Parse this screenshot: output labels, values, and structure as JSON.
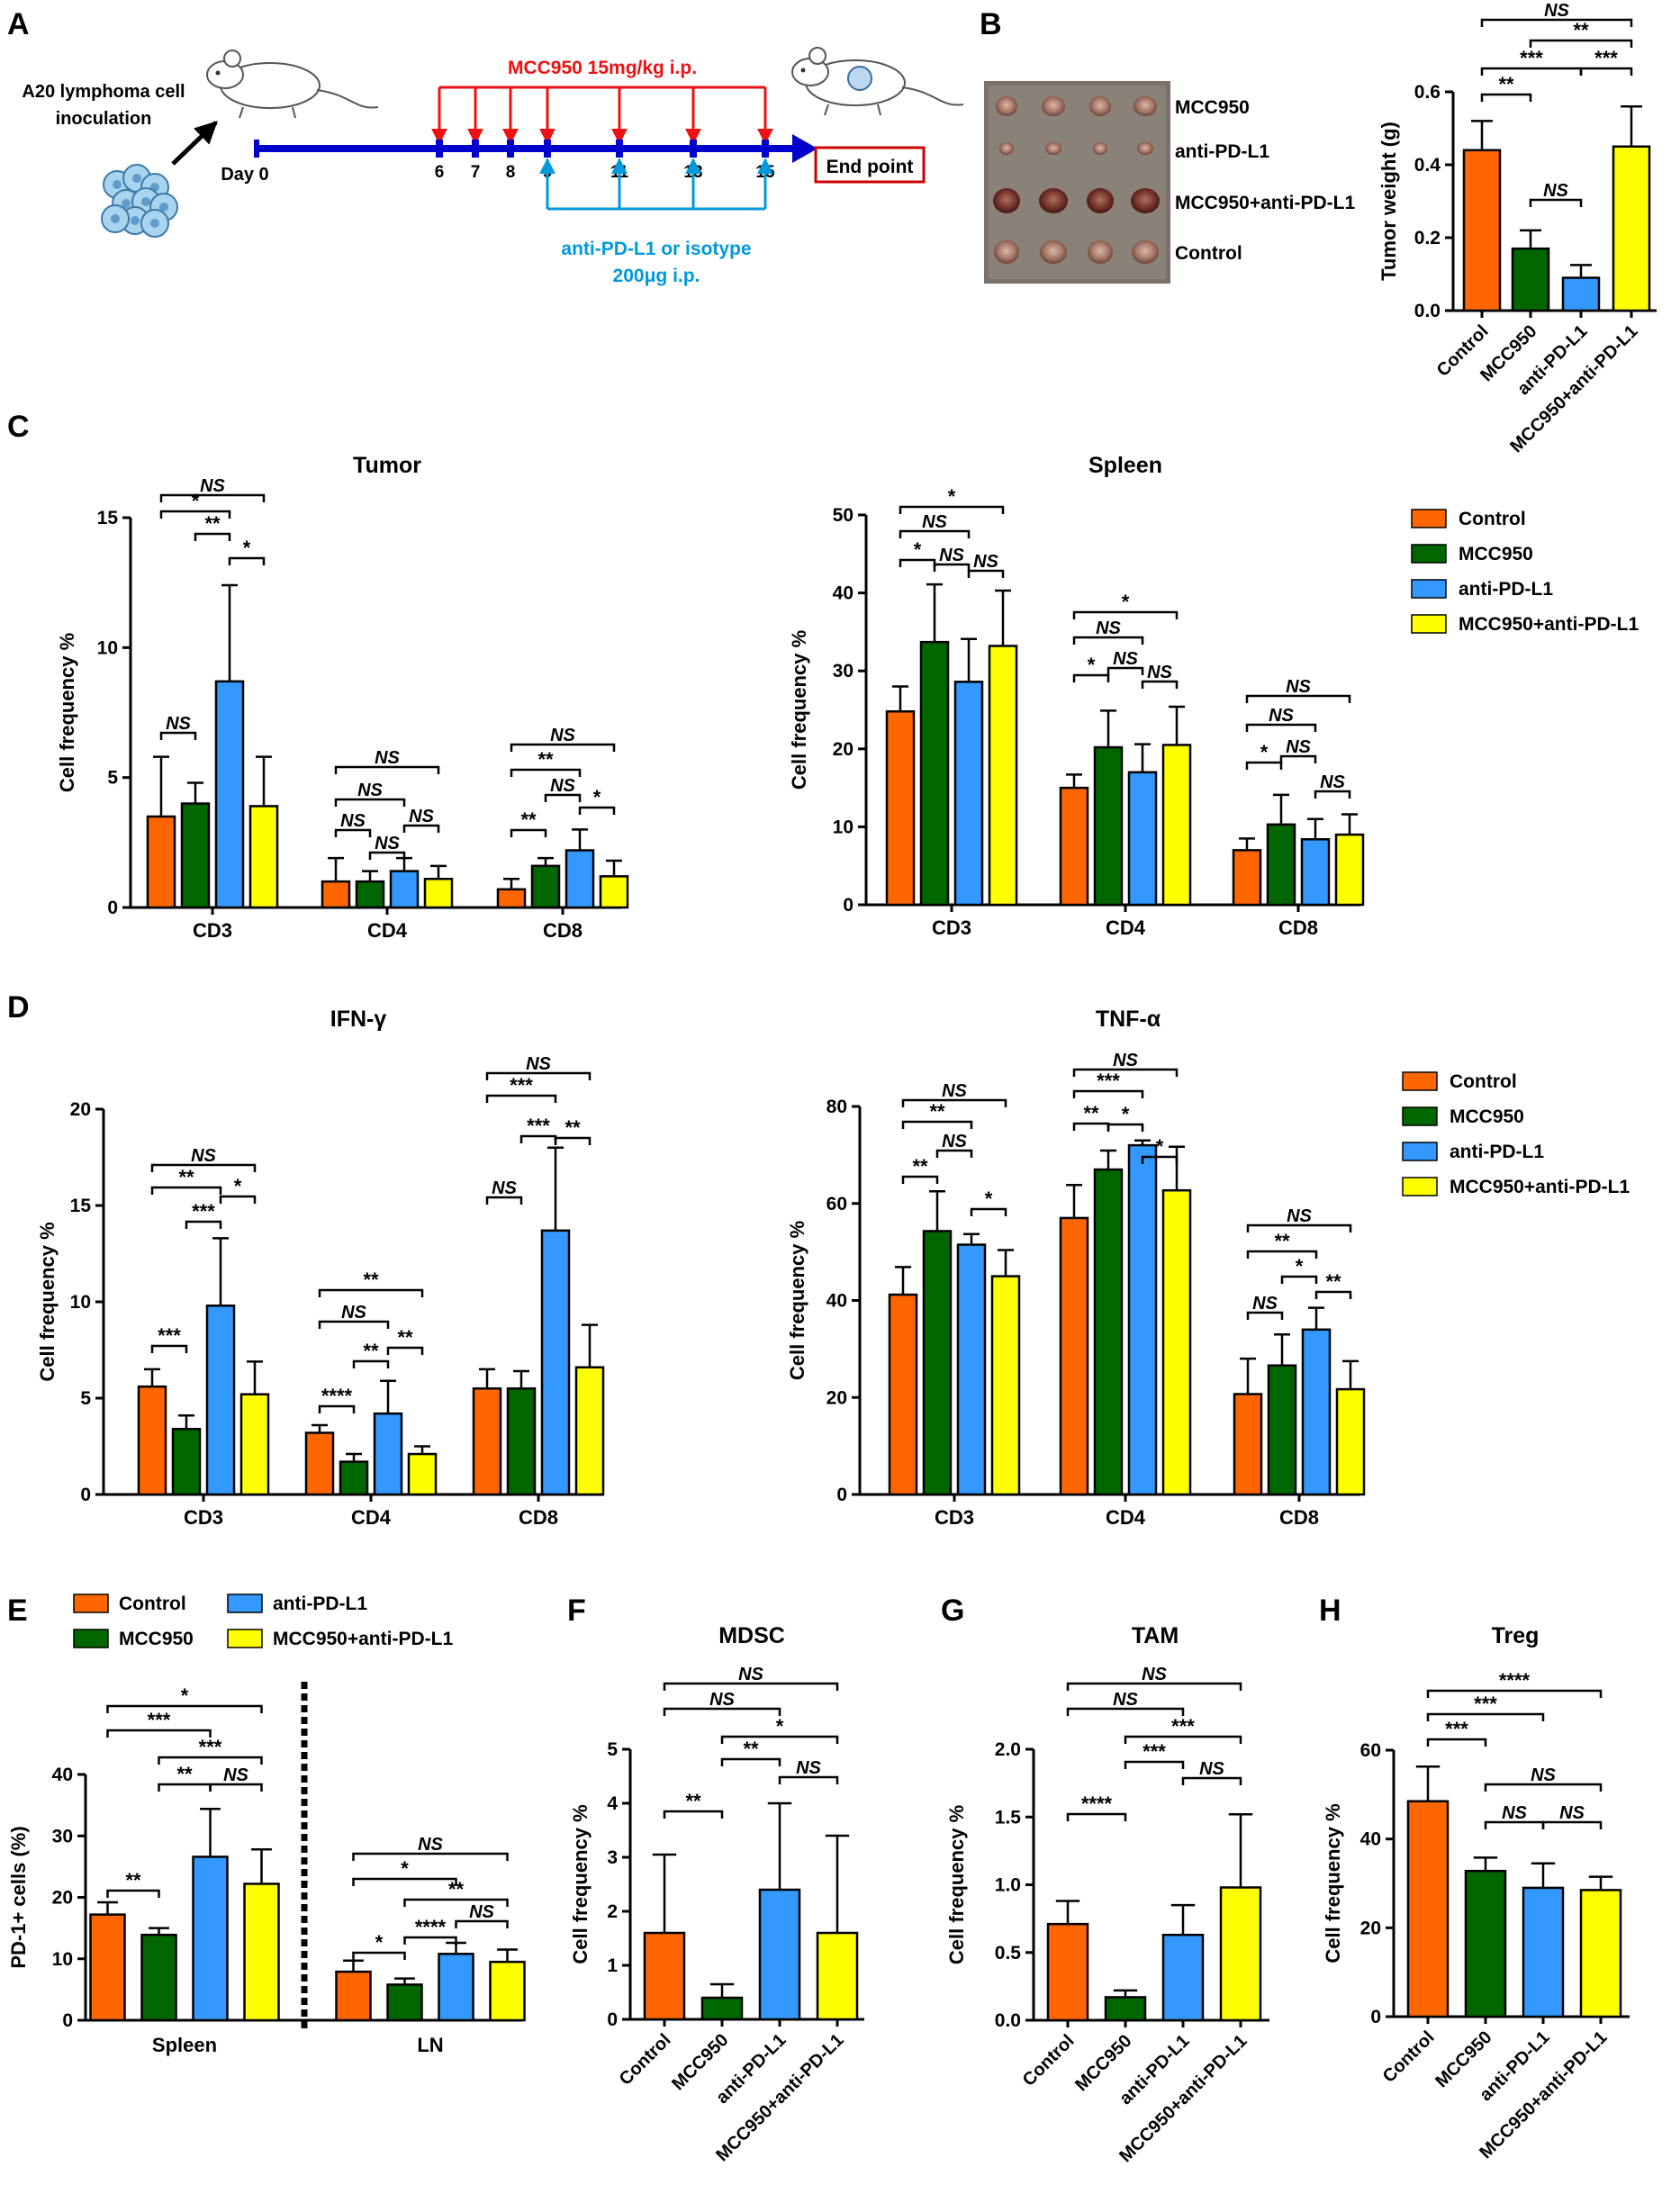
{
  "colors": {
    "Control": "#ff6600",
    "MCC950": "#006600",
    "anti-PD-L1": "#3399ff",
    "MCC950+anti-PD-L1": "#ffff00",
    "timeline_blue": "#0000cc",
    "timeline_red": "#ee1111",
    "arrow_cyan": "#0099dd",
    "endpoint_border": "#cc0000"
  },
  "groups": [
    "Control",
    "MCC950",
    "anti-PD-L1",
    "MCC950+anti-PD-L1"
  ],
  "panel_letters": {
    "A": "A",
    "B": "B",
    "C": "C",
    "D": "D",
    "E": "E",
    "F": "F",
    "G": "G",
    "H": "H"
  },
  "panelA": {
    "inoculation": [
      "A20 lymphoma cell",
      "inoculation"
    ],
    "day0": "Day 0",
    "mcc_label": "MCC950 15mg/kg i.p.",
    "mcc_days": [
      "6",
      "7",
      "8",
      "9",
      "11",
      "13",
      "15"
    ],
    "anti_label": [
      "anti-PD-L1 or isotype",
      "200μg i.p."
    ],
    "anti_days": [
      "9",
      "11",
      "13",
      "15"
    ],
    "endpoint": "End point"
  },
  "panelB": {
    "photo_labels": [
      "MCC950",
      "anti-PD-L1",
      "MCC950+anti-PD-L1",
      "Control"
    ],
    "photo_icon": "excised-tumor-photo"
  },
  "chart_data": [
    {
      "id": "B",
      "type": "bar",
      "ylabel": "Tumor weight (g)",
      "ylim": [
        0,
        0.6
      ],
      "yticks": [
        "0.0",
        "0.2",
        "0.4",
        "0.6"
      ],
      "categories": [
        "Control",
        "MCC950",
        "anti-PD-L1",
        "MCC950+anti-PD-L1"
      ],
      "values": [
        0.44,
        0.17,
        0.09,
        0.45
      ],
      "errors": [
        0.08,
        0.05,
        0.035,
        0.11
      ],
      "annotations": [
        {
          "text": "NS",
          "from": "Control",
          "to": "MCC950+anti-PD-L1"
        },
        {
          "text": "**",
          "from": "MCC950",
          "to": "MCC950+anti-PD-L1"
        },
        {
          "text": "***",
          "from": "Control",
          "to": "anti-PD-L1"
        },
        {
          "text": "***",
          "from": "anti-PD-L1",
          "to": "MCC950+anti-PD-L1"
        },
        {
          "text": "**",
          "from": "Control",
          "to": "MCC950"
        },
        {
          "text": "NS",
          "from": "MCC950",
          "to": "anti-PD-L1"
        }
      ]
    },
    {
      "id": "C-tumor",
      "type": "bar",
      "title": "Tumor",
      "ylabel": "Cell frequency %",
      "ylim": [
        0,
        15
      ],
      "yticks": [
        "0",
        "5",
        "10",
        "15"
      ],
      "categories": [
        "CD3",
        "CD4",
        "CD8"
      ],
      "series": [
        {
          "name": "Control",
          "values": [
            3.5,
            1.0,
            0.7
          ],
          "errors": [
            2.3,
            0.9,
            0.4
          ]
        },
        {
          "name": "MCC950",
          "values": [
            4.0,
            1.0,
            1.6
          ],
          "errors": [
            0.8,
            0.4,
            0.3
          ]
        },
        {
          "name": "anti-PD-L1",
          "values": [
            8.7,
            1.4,
            2.2
          ],
          "errors": [
            3.7,
            0.5,
            0.8
          ]
        },
        {
          "name": "MCC950+anti-PD-L1",
          "values": [
            3.9,
            1.1,
            1.2
          ],
          "errors": [
            1.9,
            0.5,
            0.6
          ]
        }
      ],
      "annotations": [
        {
          "cat": 0,
          "text": "NS",
          "from": 0,
          "to": 3
        },
        {
          "cat": 0,
          "text": "*",
          "from": 0,
          "to": 2
        },
        {
          "cat": 0,
          "text": "**",
          "from": 1,
          "to": 2
        },
        {
          "cat": 0,
          "text": "*",
          "from": 2,
          "to": 3
        },
        {
          "cat": 0,
          "text": "NS",
          "from": 0,
          "to": 1
        },
        {
          "cat": 1,
          "text": "NS",
          "from": 0,
          "to": 3
        },
        {
          "cat": 1,
          "text": "NS",
          "from": 0,
          "to": 2
        },
        {
          "cat": 1,
          "text": "NS",
          "from": 2,
          "to": 3
        },
        {
          "cat": 1,
          "text": "NS",
          "from": 0,
          "to": 1
        },
        {
          "cat": 1,
          "text": "NS",
          "from": 1,
          "to": 2
        },
        {
          "cat": 2,
          "text": "NS",
          "from": 0,
          "to": 3
        },
        {
          "cat": 2,
          "text": "**",
          "from": 0,
          "to": 2
        },
        {
          "cat": 2,
          "text": "NS",
          "from": 1,
          "to": 2
        },
        {
          "cat": 2,
          "text": "*",
          "from": 2,
          "to": 3
        },
        {
          "cat": 2,
          "text": "**",
          "from": 0,
          "to": 1
        }
      ]
    },
    {
      "id": "C-spleen",
      "type": "bar",
      "title": "Spleen",
      "ylabel": "Cell frequency %",
      "ylim": [
        0,
        50
      ],
      "yticks": [
        "0",
        "10",
        "20",
        "30",
        "40",
        "50"
      ],
      "categories": [
        "CD3",
        "CD4",
        "CD8"
      ],
      "series": [
        {
          "name": "Control",
          "values": [
            24.8,
            15.0,
            7.0
          ],
          "errors": [
            3.2,
            1.7,
            1.5
          ]
        },
        {
          "name": "MCC950",
          "values": [
            33.7,
            20.2,
            10.3
          ],
          "errors": [
            7.4,
            4.7,
            3.8
          ]
        },
        {
          "name": "anti-PD-L1",
          "values": [
            28.6,
            17.0,
            8.4
          ],
          "errors": [
            5.5,
            3.6,
            2.6
          ]
        },
        {
          "name": "MCC950+anti-PD-L1",
          "values": [
            33.2,
            20.5,
            9.0
          ],
          "errors": [
            7.1,
            4.9,
            2.6
          ]
        }
      ],
      "annotations": [
        {
          "cat": 0,
          "text": "*",
          "from": 0,
          "to": 3
        },
        {
          "cat": 0,
          "text": "NS",
          "from": 0,
          "to": 2
        },
        {
          "cat": 0,
          "text": "*",
          "from": 0,
          "to": 1
        },
        {
          "cat": 0,
          "text": "NS",
          "from": 1,
          "to": 2
        },
        {
          "cat": 0,
          "text": "NS",
          "from": 2,
          "to": 3
        },
        {
          "cat": 1,
          "text": "*",
          "from": 0,
          "to": 3
        },
        {
          "cat": 1,
          "text": "NS",
          "from": 0,
          "to": 2
        },
        {
          "cat": 1,
          "text": "NS",
          "from": 1,
          "to": 2
        },
        {
          "cat": 1,
          "text": "*",
          "from": 0,
          "to": 1
        },
        {
          "cat": 1,
          "text": "NS",
          "from": 2,
          "to": 3
        },
        {
          "cat": 2,
          "text": "NS",
          "from": 0,
          "to": 3
        },
        {
          "cat": 2,
          "text": "NS",
          "from": 0,
          "to": 2
        },
        {
          "cat": 2,
          "text": "NS",
          "from": 1,
          "to": 2
        },
        {
          "cat": 2,
          "text": "*",
          "from": 0,
          "to": 1
        },
        {
          "cat": 2,
          "text": "NS",
          "from": 2,
          "to": 3
        }
      ]
    },
    {
      "id": "D-ifng",
      "type": "bar",
      "title": "IFN-γ",
      "ylabel": "Cell frequency %",
      "ylim": [
        0,
        20
      ],
      "yticks": [
        "0",
        "5",
        "10",
        "15",
        "20"
      ],
      "categories": [
        "CD3",
        "CD4",
        "CD8"
      ],
      "series": [
        {
          "name": "Control",
          "values": [
            5.6,
            3.2,
            5.5
          ],
          "errors": [
            0.9,
            0.4,
            1.0
          ]
        },
        {
          "name": "MCC950",
          "values": [
            3.4,
            1.7,
            5.5
          ],
          "errors": [
            0.7,
            0.4,
            0.9
          ]
        },
        {
          "name": "anti-PD-L1",
          "values": [
            9.8,
            4.2,
            13.7
          ],
          "errors": [
            3.5,
            1.7,
            4.3
          ]
        },
        {
          "name": "MCC950+anti-PD-L1",
          "values": [
            5.2,
            2.1,
            6.6
          ],
          "errors": [
            1.7,
            0.4,
            2.2
          ]
        }
      ],
      "annotations": [
        {
          "cat": 0,
          "text": "NS",
          "from": 0,
          "to": 3
        },
        {
          "cat": 0,
          "text": "**",
          "from": 0,
          "to": 2
        },
        {
          "cat": 0,
          "text": "***",
          "from": 1,
          "to": 2
        },
        {
          "cat": 0,
          "text": "*",
          "from": 2,
          "to": 3
        },
        {
          "cat": 0,
          "text": "***",
          "from": 0,
          "to": 1
        },
        {
          "cat": 1,
          "text": "**",
          "from": 0,
          "to": 3
        },
        {
          "cat": 1,
          "text": "NS",
          "from": 0,
          "to": 2
        },
        {
          "cat": 1,
          "text": "**",
          "from": 1,
          "to": 2
        },
        {
          "cat": 1,
          "text": "**",
          "from": 2,
          "to": 3
        },
        {
          "cat": 1,
          "text": "****",
          "from": 0,
          "to": 1
        },
        {
          "cat": 2,
          "text": "NS",
          "from": 0,
          "to": 3
        },
        {
          "cat": 2,
          "text": "***",
          "from": 0,
          "to": 2
        },
        {
          "cat": 2,
          "text": "***",
          "from": 1,
          "to": 2
        },
        {
          "cat": 2,
          "text": "**",
          "from": 2,
          "to": 3
        },
        {
          "cat": 2,
          "text": "NS",
          "from": 0,
          "to": 1
        }
      ]
    },
    {
      "id": "D-tnfa",
      "type": "bar",
      "title": "TNF-α",
      "ylabel": "Cell frequency %",
      "ylim": [
        0,
        80
      ],
      "yticks": [
        "0",
        "20",
        "40",
        "60",
        "80"
      ],
      "categories": [
        "CD3",
        "CD4",
        "CD8"
      ],
      "series": [
        {
          "name": "Control",
          "values": [
            41.2,
            57.0,
            20.7
          ],
          "errors": [
            5.7,
            6.8,
            7.3
          ]
        },
        {
          "name": "MCC950",
          "values": [
            54.3,
            67.0,
            26.6
          ],
          "errors": [
            8.2,
            3.9,
            6.4
          ]
        },
        {
          "name": "anti-PD-L1",
          "values": [
            51.5,
            72.0,
            34.0
          ],
          "errors": [
            2.2,
            1.0,
            4.5
          ]
        },
        {
          "name": "MCC950+anti-PD-L1",
          "values": [
            45.0,
            62.7,
            21.7
          ],
          "errors": [
            5.4,
            9.0,
            5.8
          ]
        }
      ],
      "annotations": [
        {
          "cat": 0,
          "text": "NS",
          "from": 0,
          "to": 3
        },
        {
          "cat": 0,
          "text": "**",
          "from": 0,
          "to": 2
        },
        {
          "cat": 0,
          "text": "NS",
          "from": 1,
          "to": 2
        },
        {
          "cat": 0,
          "text": "**",
          "from": 0,
          "to": 1
        },
        {
          "cat": 0,
          "text": "*",
          "from": 2,
          "to": 3
        },
        {
          "cat": 1,
          "text": "NS",
          "from": 0,
          "to": 3
        },
        {
          "cat": 1,
          "text": "***",
          "from": 0,
          "to": 2
        },
        {
          "cat": 1,
          "text": "**",
          "from": 0,
          "to": 1
        },
        {
          "cat": 1,
          "text": "*",
          "from": 1,
          "to": 2
        },
        {
          "cat": 1,
          "text": "*",
          "from": 2,
          "to": 3
        },
        {
          "cat": 2,
          "text": "NS",
          "from": 0,
          "to": 3
        },
        {
          "cat": 2,
          "text": "**",
          "from": 0,
          "to": 2
        },
        {
          "cat": 2,
          "text": "*",
          "from": 1,
          "to": 2
        },
        {
          "cat": 2,
          "text": "NS",
          "from": 0,
          "to": 1
        },
        {
          "cat": 2,
          "text": "**",
          "from": 2,
          "to": 3
        }
      ]
    },
    {
      "id": "E",
      "type": "bar",
      "ylabel": "PD-1+ cells (%)",
      "ylim": [
        0,
        40
      ],
      "yticks": [
        "0",
        "10",
        "20",
        "30",
        "40"
      ],
      "categories": [
        "Spleen",
        "LN"
      ],
      "series": [
        {
          "name": "Control",
          "values": [
            17.2,
            7.9
          ],
          "errors": [
            2.0,
            1.8
          ]
        },
        {
          "name": "MCC950",
          "values": [
            13.9,
            5.8
          ],
          "errors": [
            1.1,
            1.0
          ]
        },
        {
          "name": "anti-PD-L1",
          "values": [
            26.6,
            10.8
          ],
          "errors": [
            7.8,
            1.8
          ]
        },
        {
          "name": "MCC950+anti-PD-L1",
          "values": [
            22.2,
            9.5
          ],
          "errors": [
            5.6,
            2.0
          ]
        }
      ],
      "annotations": [
        {
          "cat": 0,
          "text": "*",
          "from": 0,
          "to": 3
        },
        {
          "cat": 0,
          "text": "***",
          "from": 0,
          "to": 2
        },
        {
          "cat": 0,
          "text": "***",
          "from": 1,
          "to": 3
        },
        {
          "cat": 0,
          "text": "**",
          "from": 1,
          "to": 2
        },
        {
          "cat": 0,
          "text": "NS",
          "from": 2,
          "to": 3
        },
        {
          "cat": 0,
          "text": "**",
          "from": 0,
          "to": 1
        },
        {
          "cat": 1,
          "text": "NS",
          "from": 0,
          "to": 3
        },
        {
          "cat": 1,
          "text": "*",
          "from": 0,
          "to": 2
        },
        {
          "cat": 1,
          "text": "**",
          "from": 1,
          "to": 3
        },
        {
          "cat": 1,
          "text": "NS",
          "from": 2,
          "to": 3
        },
        {
          "cat": 1,
          "text": "****",
          "from": 1,
          "to": 2
        },
        {
          "cat": 1,
          "text": "*",
          "from": 0,
          "to": 1
        }
      ]
    },
    {
      "id": "F",
      "type": "bar",
      "title": "MDSC",
      "ylabel": "Cell frequency %",
      "ylim": [
        0,
        5
      ],
      "yticks": [
        "0",
        "1",
        "2",
        "3",
        "4",
        "5"
      ],
      "categories": [
        "Control",
        "MCC950",
        "anti-PD-L1",
        "MCC950+anti-PD-L1"
      ],
      "values": [
        1.6,
        0.4,
        2.4,
        1.6
      ],
      "errors": [
        1.45,
        0.25,
        1.6,
        1.8
      ],
      "annotations": [
        {
          "text": "NS",
          "from": 0,
          "to": 3
        },
        {
          "text": "NS",
          "from": 0,
          "to": 2
        },
        {
          "text": "*",
          "from": 1,
          "to": 3
        },
        {
          "text": "**",
          "from": 1,
          "to": 2
        },
        {
          "text": "NS",
          "from": 2,
          "to": 3
        },
        {
          "text": "**",
          "from": 0,
          "to": 1
        }
      ]
    },
    {
      "id": "G",
      "type": "bar",
      "title": "TAM",
      "ylabel": "Cell frequency %",
      "ylim": [
        0,
        2.0
      ],
      "yticks": [
        "0.0",
        "0.5",
        "1.0",
        "1.5",
        "2.0"
      ],
      "categories": [
        "Control",
        "MCC950",
        "anti-PD-L1",
        "MCC950+anti-PD-L1"
      ],
      "values": [
        0.71,
        0.17,
        0.63,
        0.98
      ],
      "errors": [
        0.17,
        0.05,
        0.22,
        0.54
      ],
      "annotations": [
        {
          "text": "NS",
          "from": 0,
          "to": 3
        },
        {
          "text": "NS",
          "from": 0,
          "to": 2
        },
        {
          "text": "***",
          "from": 1,
          "to": 3
        },
        {
          "text": "***",
          "from": 1,
          "to": 2
        },
        {
          "text": "NS",
          "from": 2,
          "to": 3
        },
        {
          "text": "****",
          "from": 0,
          "to": 1
        }
      ]
    },
    {
      "id": "H",
      "type": "bar",
      "title": "Treg",
      "ylabel": "Cell frequency %",
      "ylim": [
        0,
        60
      ],
      "yticks": [
        "0",
        "20",
        "40",
        "60"
      ],
      "categories": [
        "Control",
        "MCC950",
        "anti-PD-L1",
        "MCC950+anti-PD-L1"
      ],
      "values": [
        48.5,
        32.8,
        29.0,
        28.5
      ],
      "errors": [
        7.8,
        3.0,
        5.5,
        3.0
      ],
      "annotations": [
        {
          "text": "****",
          "from": 0,
          "to": 3
        },
        {
          "text": "***",
          "from": 0,
          "to": 2
        },
        {
          "text": "***",
          "from": 0,
          "to": 1
        },
        {
          "text": "NS",
          "from": 1,
          "to": 3
        },
        {
          "text": "NS",
          "from": 1,
          "to": 2
        },
        {
          "text": "NS",
          "from": 2,
          "to": 3
        }
      ]
    }
  ]
}
